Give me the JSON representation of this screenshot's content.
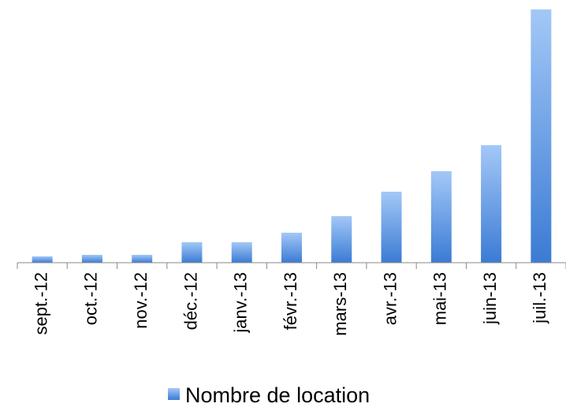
{
  "chart_data": {
    "type": "bar",
    "categories": [
      "sept.-12",
      "oct.-12",
      "nov.-12",
      "déc.-12",
      "janv.-13",
      "févr.-13",
      "mars-13",
      "avr.-13",
      "mai-13",
      "juin-13",
      "juil.-13"
    ],
    "series": [
      {
        "name": "Nombre de location",
        "color": "#4a88dc",
        "values": [
          8,
          10,
          10,
          26,
          26,
          38,
          59,
          90,
          116,
          149,
          321
        ]
      }
    ],
    "ylim": [
      0,
      321
    ],
    "legend": "bottom"
  }
}
